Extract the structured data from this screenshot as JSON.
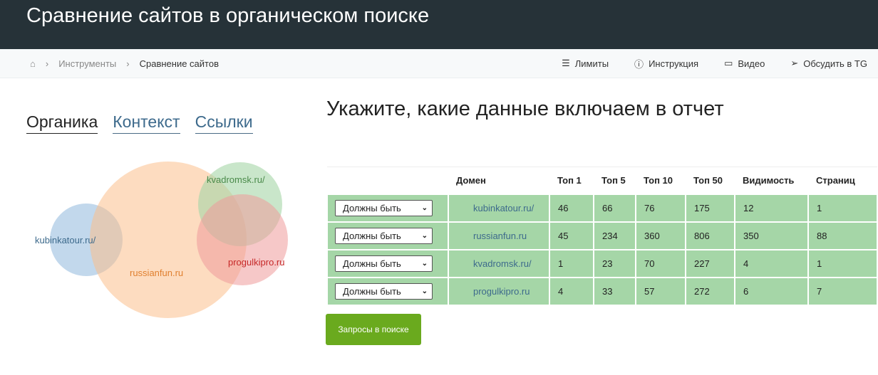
{
  "header": {
    "title": "Сравнение сайтов в органическом поиске"
  },
  "breadcrumb": {
    "items": [
      "Инструменты",
      "Сравнение сайтов"
    ]
  },
  "actions": [
    {
      "label": "Лимиты",
      "icon": "sliders-icon"
    },
    {
      "label": "Инструкция",
      "icon": "info-icon"
    },
    {
      "label": "Видео",
      "icon": "video-icon"
    },
    {
      "label": "Обсудить в TG",
      "icon": "send-icon"
    }
  ],
  "tabs": [
    {
      "label": "Органика",
      "active": true
    },
    {
      "label": "Контекст"
    },
    {
      "label": "Ссылки"
    }
  ],
  "venn": [
    {
      "label": "kubinkatour.ru/",
      "color": "#90b8dc"
    },
    {
      "label": "russianfun.ru",
      "color": "#fbc08c"
    },
    {
      "label": "kvadromsk.ru/",
      "color": "#a5d6a7"
    },
    {
      "label": "progulkipro.ru",
      "color": "#ef9a9a"
    }
  ],
  "main": {
    "title": "Укажите, какие данные включаем в отчет",
    "button": "Запросы в поиске"
  },
  "table": {
    "headers": [
      "",
      "Домен",
      "Топ 1",
      "Топ 5",
      "Топ 10",
      "Топ 50",
      "Видимость",
      "Страниц"
    ],
    "rows": [
      {
        "filter": "Должны быть",
        "cells": [
          "kubinkatour.ru/",
          "46",
          "66",
          "76",
          "175",
          "12",
          "1"
        ]
      },
      {
        "filter": "Должны быть",
        "cells": [
          "russianfun.ru",
          "45",
          "234",
          "360",
          "806",
          "350",
          "88"
        ]
      },
      {
        "filter": "Должны быть",
        "cells": [
          "kvadromsk.ru/",
          "1",
          "23",
          "70",
          "227",
          "4",
          "1"
        ]
      },
      {
        "filter": "Должны быть",
        "cells": [
          "progulkipro.ru",
          "4",
          "33",
          "57",
          "272",
          "6",
          "7"
        ]
      }
    ]
  }
}
